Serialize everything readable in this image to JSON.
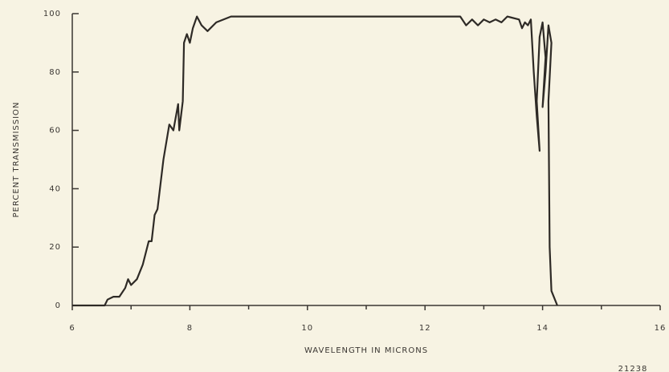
{
  "chart_data": {
    "type": "line",
    "ylabel": "PERCENT TRANSMISSION",
    "xlabel": "WAVELENGTH IN MICRONS",
    "annotation": "21238",
    "color": "#2e2a26",
    "x": [
      6.0,
      6.55,
      6.6,
      6.7,
      6.8,
      6.9,
      6.95,
      7.0,
      7.1,
      7.2,
      7.3,
      7.35,
      7.4,
      7.45,
      7.55,
      7.65,
      7.72,
      7.8,
      7.82,
      7.88,
      7.9,
      7.95,
      8.0,
      8.05,
      8.12,
      8.2,
      8.3,
      8.45,
      8.7,
      12.6,
      12.7,
      12.8,
      12.9,
      13.0,
      13.1,
      13.2,
      13.3,
      13.4,
      13.6,
      13.65,
      13.7,
      13.75,
      13.8,
      13.85,
      13.9,
      13.95,
      13.9,
      13.95,
      14.0,
      14.05,
      14.0,
      14.05,
      14.1,
      14.15,
      14.1,
      14.12,
      14.15,
      14.25
    ],
    "values": [
      0,
      0,
      2,
      3,
      3,
      6,
      9,
      7,
      9,
      14,
      22,
      22,
      31,
      33,
      50,
      62,
      60,
      69,
      60,
      70,
      90,
      93,
      90,
      95,
      99,
      96,
      94,
      97,
      99,
      99,
      96,
      98,
      96,
      98,
      97,
      98,
      97,
      99,
      98,
      95,
      97,
      96,
      98,
      80,
      65,
      53,
      70,
      92,
      97,
      85,
      68,
      80,
      96,
      90,
      70,
      20,
      5,
      0
    ],
    "xlim": [
      6,
      16
    ],
    "xticks": [
      6,
      8,
      10,
      12,
      14,
      16
    ],
    "xminorticks": [
      7,
      9,
      11,
      13,
      15
    ],
    "ylim": [
      0,
      100
    ],
    "yticks": [
      0,
      20,
      40,
      60,
      80,
      100
    ]
  }
}
